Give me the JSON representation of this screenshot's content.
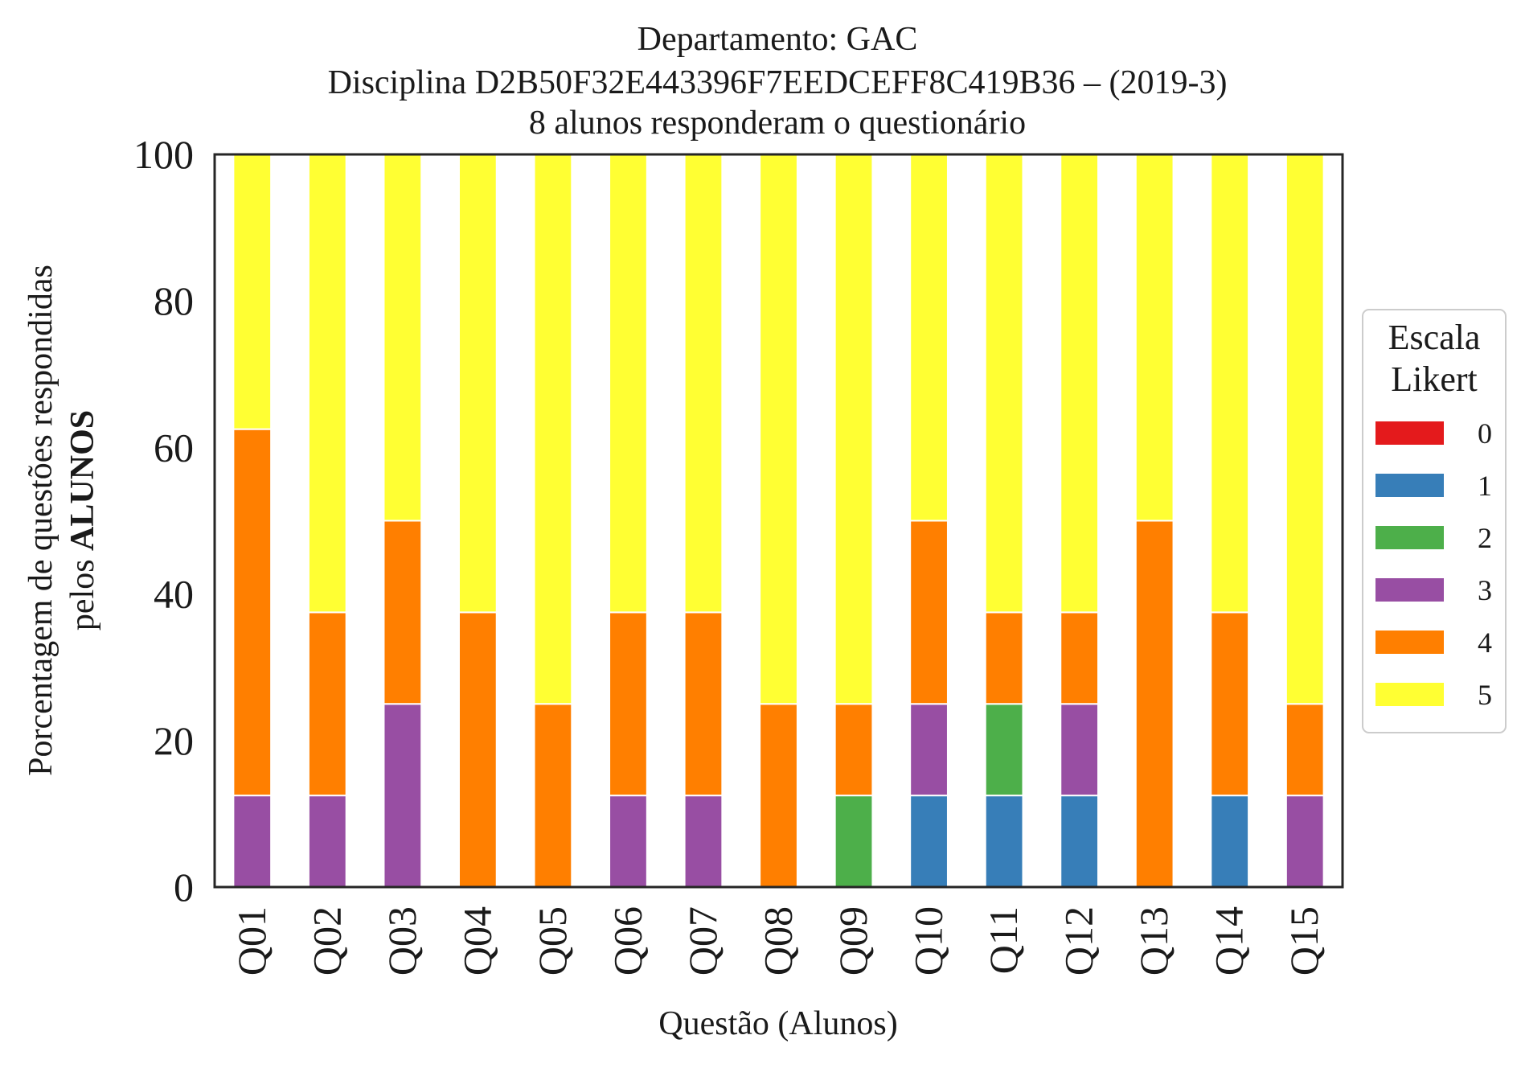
{
  "chart_data": {
    "type": "bar",
    "stacked": true,
    "title_lines": [
      "Departamento: GAC",
      "Disciplina D2B50F32E443396F7EEDCEFF8C419B36 – (2019-3)",
      "8 alunos responderam o questionário"
    ],
    "xlabel": "Questão (Alunos)",
    "ylabel_lines": [
      "Porcentagem de questões respondidas",
      "pelos",
      "ALUNOS"
    ],
    "ylim": [
      0,
      100
    ],
    "yticks": [
      0,
      20,
      40,
      60,
      80,
      100
    ],
    "categories": [
      "Q01",
      "Q02",
      "Q03",
      "Q04",
      "Q05",
      "Q06",
      "Q07",
      "Q08",
      "Q09",
      "Q10",
      "Q11",
      "Q12",
      "Q13",
      "Q14",
      "Q15"
    ],
    "legend": {
      "title_lines": [
        "Escala",
        "Likert"
      ],
      "placement": "right"
    },
    "series": [
      {
        "name": "0",
        "color": "#e41a1c",
        "values": [
          0,
          0,
          0,
          0,
          0,
          0,
          0,
          0,
          0,
          0,
          0,
          0,
          0,
          0,
          0
        ]
      },
      {
        "name": "1",
        "color": "#377eb8",
        "values": [
          0,
          0,
          0,
          0,
          0,
          0,
          0,
          0,
          0,
          12.5,
          12.5,
          12.5,
          0,
          12.5,
          0
        ]
      },
      {
        "name": "2",
        "color": "#4daf4a",
        "values": [
          0,
          0,
          0,
          0,
          0,
          0,
          0,
          0,
          12.5,
          0,
          12.5,
          0,
          0,
          0,
          0
        ]
      },
      {
        "name": "3",
        "color": "#984ea3",
        "values": [
          12.5,
          12.5,
          25,
          0,
          0,
          12.5,
          12.5,
          0,
          0,
          12.5,
          0,
          12.5,
          0,
          0,
          12.5
        ]
      },
      {
        "name": "4",
        "color": "#ff7f00",
        "values": [
          50,
          25,
          25,
          37.5,
          25,
          25,
          25,
          25,
          12.5,
          25,
          12.5,
          12.5,
          50,
          25,
          12.5
        ]
      },
      {
        "name": "5",
        "color": "#ffff33",
        "values": [
          37.5,
          62.5,
          50,
          62.5,
          75,
          62.5,
          62.5,
          75,
          75,
          50,
          62.5,
          62.5,
          50,
          62.5,
          75
        ]
      }
    ]
  }
}
